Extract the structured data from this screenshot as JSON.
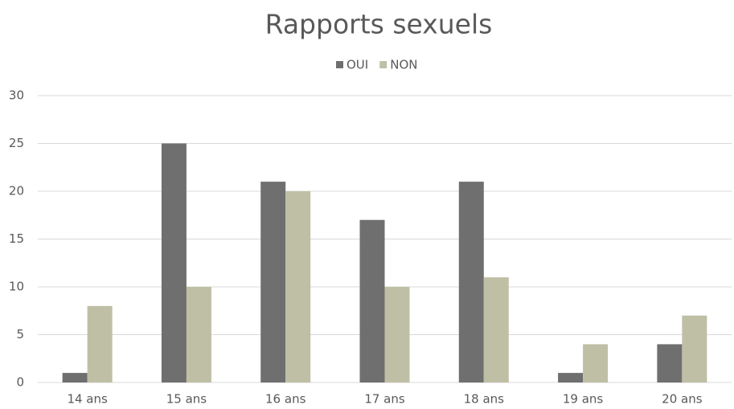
{
  "chart_data": {
    "type": "bar",
    "title": "Rapports sexuels",
    "categories": [
      "14 ans",
      "15 ans",
      "16 ans",
      "17 ans",
      "18 ans",
      "19 ans",
      "20 ans"
    ],
    "series": [
      {
        "name": "OUI",
        "color": "#6f6f6f",
        "values": [
          1,
          25,
          21,
          17,
          21,
          1,
          4
        ]
      },
      {
        "name": "NON",
        "color": "#bfbfa5",
        "values": [
          8,
          10,
          20,
          10,
          11,
          4,
          7
        ]
      }
    ],
    "ylim": [
      0,
      30
    ],
    "yticks": [
      0,
      5,
      10,
      15,
      20,
      25,
      30
    ],
    "grid": true,
    "legend": "top"
  }
}
